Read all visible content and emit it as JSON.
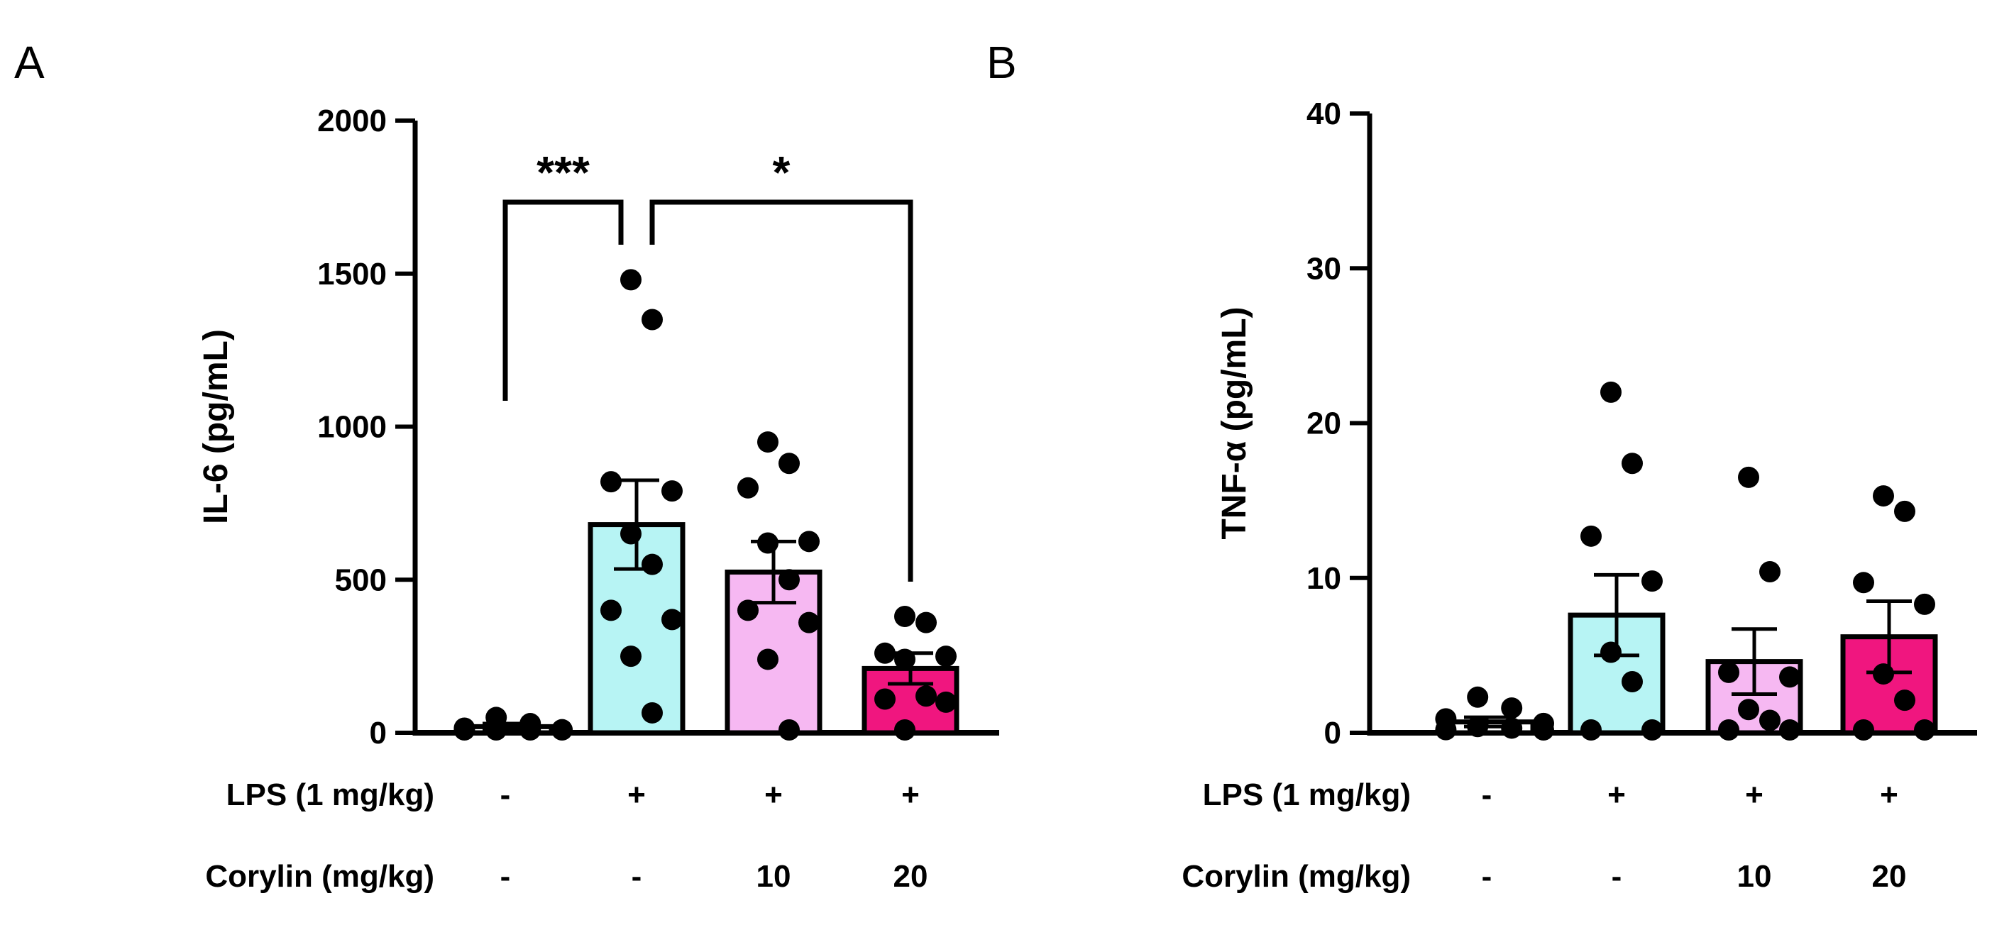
{
  "chart_data": [
    {
      "panel": "A",
      "type": "bar",
      "ylabel": "IL-6 (pg/mL)",
      "ylim": [
        0,
        2000
      ],
      "yticks": [
        "0",
        "500",
        "1000",
        "1500",
        "2000"
      ],
      "groups": [
        "g1",
        "g2",
        "g3",
        "g4"
      ],
      "bar_colors": [
        "#ffffff",
        "#b7f4f4",
        "#f6b8f2",
        "#f0167f"
      ],
      "means": [
        20,
        680,
        525,
        210
      ],
      "sem": [
        10,
        145,
        100,
        50
      ],
      "points": [
        [
          50,
          30,
          15,
          10,
          5,
          5,
          5,
          5
        ],
        [
          1480,
          1350,
          820,
          790,
          650,
          550,
          400,
          370,
          250,
          65
        ],
        [
          950,
          880,
          800,
          625,
          620,
          500,
          400,
          360,
          240,
          5
        ],
        [
          380,
          360,
          260,
          250,
          240,
          120,
          110,
          100,
          0
        ]
      ],
      "significance": [
        {
          "from": 0,
          "to": 1,
          "label": "***"
        },
        {
          "from": 1,
          "to": 3,
          "label": "*"
        }
      ],
      "treatment_rows": [
        {
          "label": "LPS (1 mg/kg)",
          "values": [
            "-",
            "+",
            "+",
            "+"
          ]
        },
        {
          "label": "Corylin (mg/kg)",
          "values": [
            "-",
            "-",
            "10",
            "20"
          ]
        }
      ]
    },
    {
      "panel": "B",
      "type": "bar",
      "ylabel": "TNF-α (pg/mL)",
      "ylim": [
        0,
        40
      ],
      "yticks": [
        "0",
        "10",
        "20",
        "30",
        "40"
      ],
      "groups": [
        "g1",
        "g2",
        "g3",
        "g4"
      ],
      "bar_colors": [
        "#ffffff",
        "#b7f4f4",
        "#f6b8f2",
        "#f0167f"
      ],
      "means": [
        0.7,
        7.6,
        4.6,
        6.2
      ],
      "sem": [
        0.3,
        2.6,
        2.1,
        2.3
      ],
      "points": [
        [
          2.3,
          1.6,
          0.9,
          0.6,
          0.4,
          0.3,
          0.2,
          0.1
        ],
        [
          22.0,
          17.4,
          12.7,
          9.8,
          5.2,
          3.3,
          0.1,
          0.0
        ],
        [
          16.5,
          10.4,
          3.9,
          3.6,
          1.5,
          0.8,
          0.1,
          0.0
        ],
        [
          15.3,
          14.3,
          9.7,
          8.3,
          3.8,
          2.1,
          0.1,
          0.0
        ]
      ],
      "significance": [],
      "treatment_rows": [
        {
          "label": "LPS (1 mg/kg)",
          "values": [
            "-",
            "+",
            "+",
            "+"
          ]
        },
        {
          "label": "Corylin (mg/kg)",
          "values": [
            "-",
            "-",
            "10",
            "20"
          ]
        }
      ]
    }
  ]
}
